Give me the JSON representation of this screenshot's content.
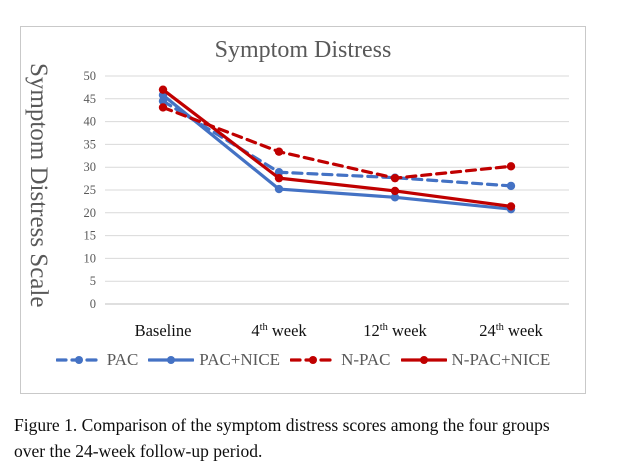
{
  "figure": {
    "caption": "Figure 1. Comparison of the symptom distress scores among the four groups over the 24-week follow-up period."
  },
  "chart_data": {
    "type": "line",
    "title": "Symptom Distress",
    "xlabel": "",
    "ylabel": "Symptom Distress Scale",
    "categories": [
      "Baseline",
      "4th week",
      "12th week",
      "24th week"
    ],
    "ylim": [
      0,
      50
    ],
    "ytick_step": 5,
    "grid": true,
    "legend_position": "bottom",
    "grid_color": "#d9d9d9",
    "axis_line_color": "#bfbfbf",
    "tick_text_color": "#595959",
    "category_text_color": "#111111",
    "series": [
      {
        "name": "PAC",
        "color": "#4472C4",
        "style": "dashed",
        "marker": "circle",
        "values": [
          44.5,
          28.9,
          27.7,
          25.9
        ]
      },
      {
        "name": "PAC+NICE",
        "color": "#4472C4",
        "style": "solid",
        "marker": "circle",
        "values": [
          45.8,
          25.2,
          23.4,
          20.8
        ]
      },
      {
        "name": "N-PAC",
        "color": "#C00000",
        "style": "dashed",
        "marker": "circle",
        "values": [
          43.1,
          33.4,
          27.6,
          30.2
        ]
      },
      {
        "name": "N-PAC+NICE",
        "color": "#C00000",
        "style": "solid",
        "marker": "circle",
        "values": [
          47.0,
          27.6,
          24.8,
          21.4
        ]
      }
    ]
  }
}
